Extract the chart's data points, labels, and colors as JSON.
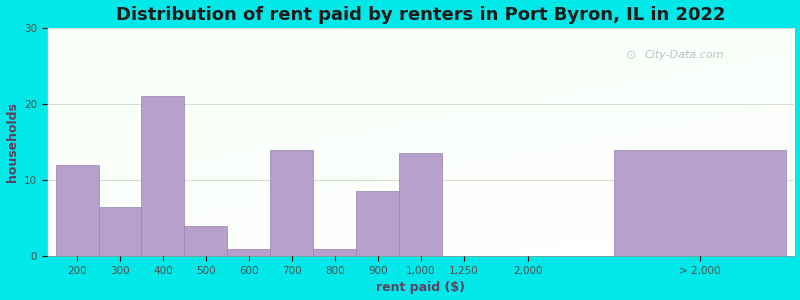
{
  "title": "Distribution of rent paid by renters in Port Byron, IL in 2022",
  "xlabel": "rent paid ($)",
  "ylabel": "households",
  "bar_color": "#b8a0cc",
  "bar_edge_color": "#9880b8",
  "background_outer": "#00e8e8",
  "yticks": [
    0,
    10,
    20,
    30
  ],
  "ylim": [
    0,
    30
  ],
  "values": [
    12,
    6.5,
    21,
    4,
    1,
    14,
    1,
    8.5,
    13.5,
    0,
    14
  ],
  "bar_lefts": [
    0,
    1,
    2,
    3,
    4,
    5,
    6,
    7,
    8,
    10,
    13
  ],
  "bar_widths": [
    1,
    1,
    1,
    1,
    1,
    1,
    1,
    1,
    1,
    0,
    4
  ],
  "xtick_positions": [
    0.5,
    1.5,
    2.5,
    3.5,
    4.5,
    5.5,
    6.5,
    7.5,
    8.5,
    9.5,
    11.0,
    15.0
  ],
  "xtick_labels": [
    "200",
    "300",
    "400",
    "500",
    "600",
    "700",
    "800",
    "900",
    "1,000",
    "1,250",
    "2,000",
    "> 2,000"
  ],
  "xlim": [
    -0.2,
    17.2
  ],
  "title_fontsize": 13,
  "axis_label_fontsize": 9,
  "tick_fontsize": 7.5,
  "watermark": "City-Data.com"
}
